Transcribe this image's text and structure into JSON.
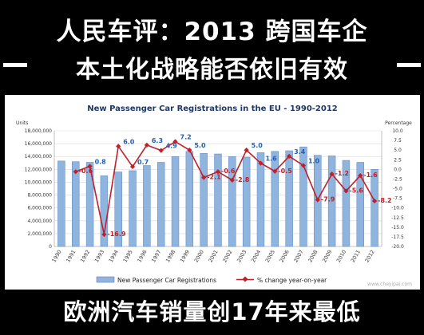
{
  "headline": {
    "line1": "人民车评：2013 跨国车企",
    "line2": "本土化战略能否依旧有效",
    "line3": "欧洲汽车销量创17年来最低"
  },
  "watermark": "www.cheyipai.com",
  "colors": {
    "background": "#000000",
    "bar": "#8fb4de",
    "bar_edge": "#5b86c0",
    "line": "#c0202a",
    "title": "#1f3864",
    "label_blue": "#1f5fb5",
    "label_red": "#c0202a"
  },
  "chart_data": {
    "type": "bar",
    "title": "New Passenger Car Registrations in the EU - 1990-2012",
    "y_left_label": "Units",
    "y_right_label": "Percentage",
    "categories": [
      "1990",
      "1991",
      "1992",
      "1993",
      "1994",
      "1995",
      "1996",
      "1997",
      "1998",
      "1999",
      "2000",
      "2001",
      "2002",
      "2003",
      "2004",
      "2005",
      "2006",
      "2007",
      "2008",
      "2009",
      "2010",
      "2011",
      "2012"
    ],
    "series": [
      {
        "name": "New Passenger Car Registrations",
        "type": "bar",
        "axis": "left",
        "values": [
          13300000,
          13200000,
          13100000,
          11000000,
          11600000,
          11800000,
          12600000,
          13100000,
          14000000,
          14800000,
          14500000,
          14400000,
          14000000,
          13900000,
          14600000,
          14800000,
          14900000,
          15500000,
          14200000,
          14100000,
          13400000,
          13100000,
          12000000
        ]
      },
      {
        "name": "% change year-on-year",
        "type": "line",
        "axis": "right",
        "values": [
          null,
          -0.6,
          0.8,
          -16.9,
          6.0,
          0.7,
          6.3,
          4.9,
          7.2,
          5.0,
          -2.1,
          -0.6,
          -2.8,
          5.0,
          1.6,
          -0.5,
          3.4,
          1.0,
          -7.9,
          -1.2,
          -5.6,
          -1.6,
          -8.2
        ],
        "labels": [
          "",
          "-0.6",
          "0.8",
          "-16.9",
          "6.0",
          "0.7",
          "6.3",
          "4.9",
          "7.2",
          "5.0",
          "-2.1",
          "-0.6",
          "-2.8",
          "5.0",
          "1.6",
          "-0.5",
          "3.4",
          "1.0",
          "-7.9",
          "-1.2",
          "-5.6",
          "-1.6",
          "-8.2"
        ]
      }
    ],
    "y_left": {
      "min": 0,
      "max": 18000000,
      "step": 2000000,
      "ticks": [
        "0",
        "2,000,000",
        "4,000,000",
        "6,000,000",
        "8,000,000",
        "10,000,000",
        "12,000,000",
        "14,000,000",
        "16,000,000",
        "18,000,000"
      ]
    },
    "y_right": {
      "min": -20,
      "max": 10,
      "step": 2.5,
      "ticks": [
        "-20.0",
        "-17.5",
        "-15.0",
        "-12.5",
        "-10.0",
        "-7.5",
        "-5.0",
        "-2.5",
        "0.0",
        "2.5",
        "5.0",
        "7.5",
        "10.0"
      ]
    },
    "grid": true,
    "legend_position": "bottom"
  }
}
